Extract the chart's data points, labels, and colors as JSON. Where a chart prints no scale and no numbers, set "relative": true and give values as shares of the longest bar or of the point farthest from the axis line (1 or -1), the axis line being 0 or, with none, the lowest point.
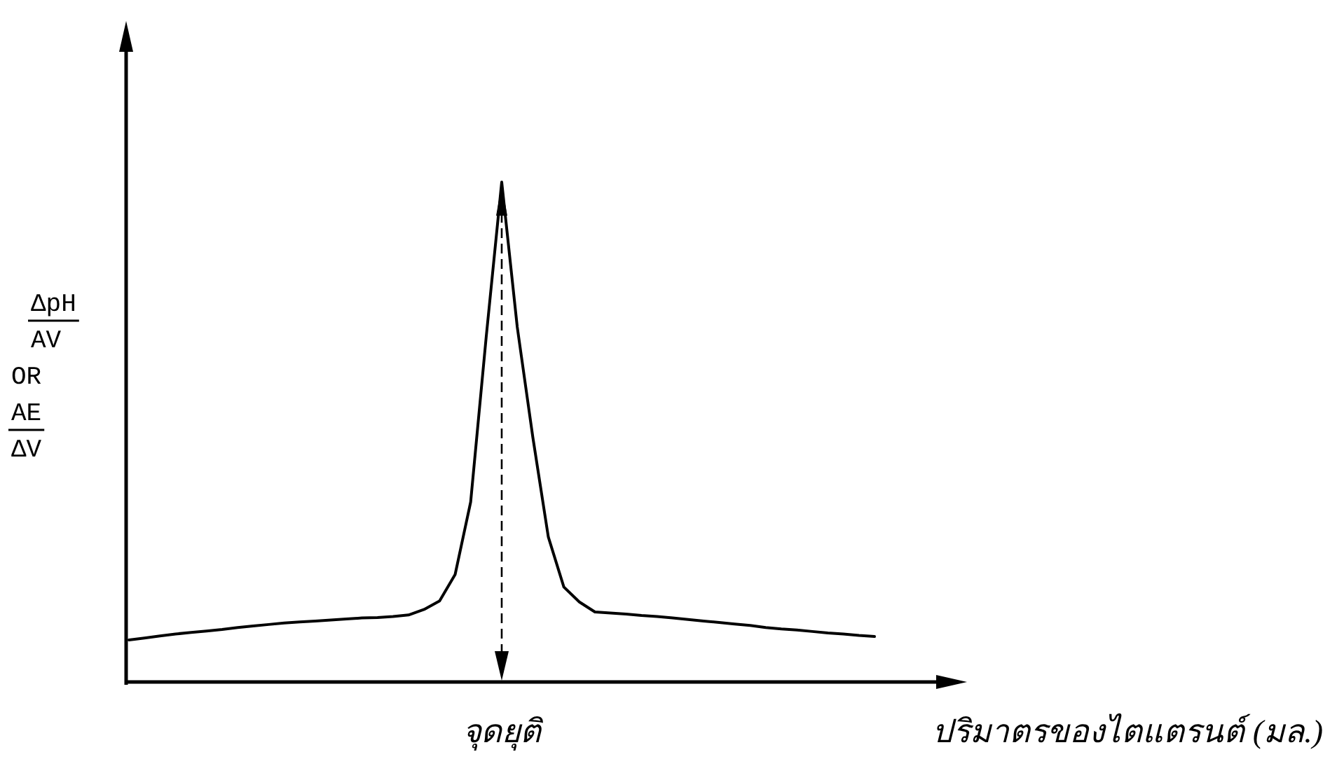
{
  "chart_data": {
    "type": "line",
    "relative": true,
    "xlabel": "ปริมาตรของไตแตรนต์ (มล.)",
    "ylabel": "ΔpH\nAV\nOR\nAE\nΔV",
    "annotations": [
      "จุดยุติ"
    ],
    "categories": [
      null,
      null,
      null,
      null,
      null,
      null,
      null,
      null,
      null,
      null,
      null,
      null,
      null,
      null,
      null,
      null,
      null,
      null,
      null,
      null,
      null,
      null,
      null,
      null,
      null,
      null,
      null,
      null,
      null,
      null,
      null,
      null,
      null,
      null,
      null,
      null,
      null,
      null,
      null,
      null,
      null,
      null,
      null,
      null,
      null,
      null,
      null,
      null,
      null
    ],
    "series": [
      {
        "color": "#000000",
        "values": [
          0.084,
          0.088,
          0.092,
          0.096,
          0.099,
          0.102,
          0.105,
          0.109,
          0.112,
          0.115,
          0.118,
          0.12,
          0.122,
          0.124,
          0.126,
          0.128,
          0.129,
          0.131,
          0.134,
          0.145,
          0.162,
          0.215,
          0.36,
          0.69,
          1,
          0.71,
          0.49,
          0.29,
          0.19,
          0.16,
          0.14,
          0.138,
          0.136,
          0.133,
          0.131,
          0.128,
          0.125,
          0.122,
          0.119,
          0.116,
          0.113,
          0.109,
          0.106,
          0.104,
          0.101,
          0.098,
          0.096,
          0.093,
          0.091
        ]
      }
    ]
  }
}
